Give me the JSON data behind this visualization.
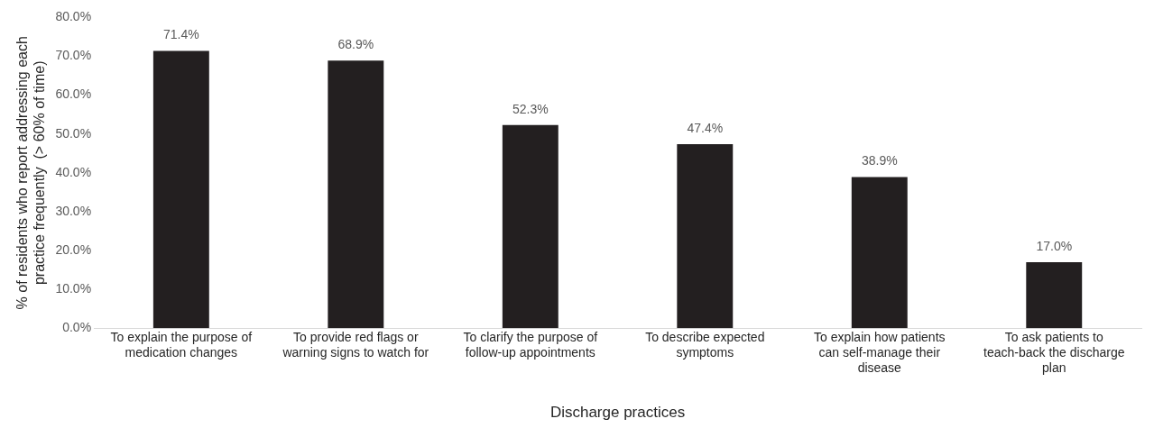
{
  "chart_data": {
    "type": "bar",
    "xlabel": "Discharge practices",
    "ylabel": "% of residents who report addressing each practice frequently  (> 60% of time)",
    "categories": [
      "To explain the purpose of medication changes",
      "To provide red flags or warning signs to watch for",
      "To clarify the purpose of follow-up appointments",
      "To describe expected symptoms",
      "To explain how patients can self-manage their disease",
      "To ask patients to teach-back the discharge plan"
    ],
    "values": [
      71.4,
      68.9,
      52.3,
      47.4,
      38.9,
      17.0
    ],
    "value_labels": [
      "71.4%",
      "68.9%",
      "52.3%",
      "47.4%",
      "38.9%",
      "17.0%"
    ],
    "color": "#231f20",
    "ylim": [
      0,
      80
    ],
    "yticks": [
      {
        "value": 0,
        "label": "0.0%"
      },
      {
        "value": 10,
        "label": "10.0%"
      },
      {
        "value": 20,
        "label": "20.0%"
      },
      {
        "value": 30,
        "label": "30.0%"
      },
      {
        "value": 40,
        "label": "40.0%"
      },
      {
        "value": 50,
        "label": "50.0%"
      },
      {
        "value": 60,
        "label": "60.0%"
      },
      {
        "value": 70,
        "label": "70.0%"
      },
      {
        "value": 80,
        "label": "80.0%"
      }
    ],
    "grid": false,
    "legend": false
  }
}
